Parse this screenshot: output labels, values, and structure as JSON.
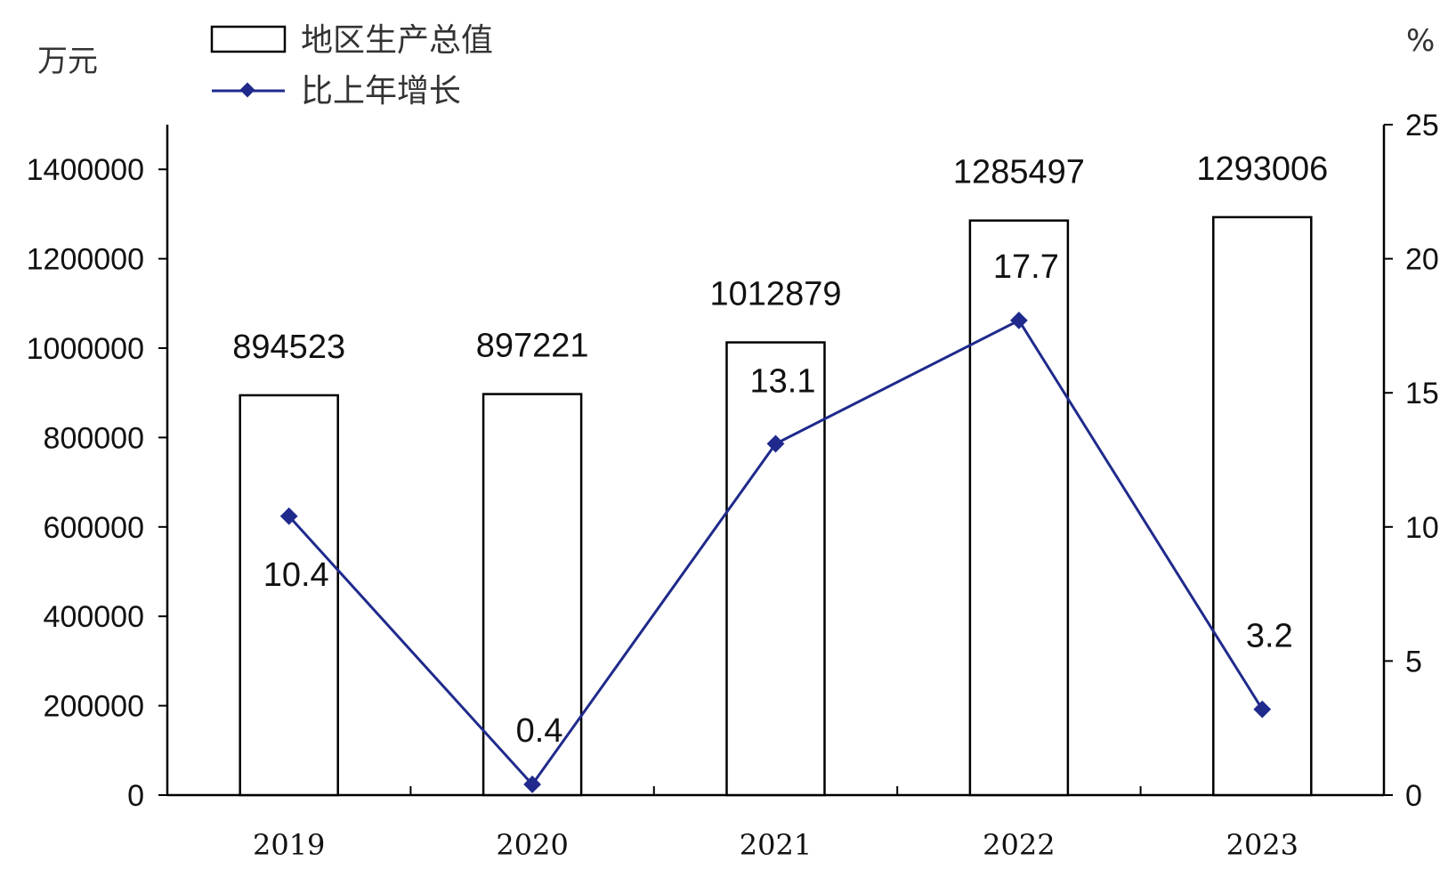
{
  "chart_data": {
    "type": "bar",
    "categories": [
      "2019",
      "2020",
      "2021",
      "2022",
      "2023"
    ],
    "series": [
      {
        "name": "地区生产总值",
        "type": "bar",
        "axis": "left",
        "values": [
          894523,
          897221,
          1012879,
          1285497,
          1293006
        ],
        "labels": [
          "894523",
          "897221",
          "1012879",
          "1285497",
          "1293006"
        ]
      },
      {
        "name": "比上年增长",
        "type": "line",
        "axis": "right",
        "values": [
          10.4,
          0.4,
          13.1,
          17.7,
          3.2
        ],
        "labels": [
          "10.4",
          "0.4",
          "13.1",
          "17.7",
          "3.2"
        ]
      }
    ],
    "y_left": {
      "unit": "万元",
      "ylim": [
        0,
        1500000
      ],
      "ticks": [
        0,
        200000,
        400000,
        600000,
        800000,
        1000000,
        1200000,
        1400000
      ],
      "tick_labels": [
        "0",
        "200000",
        "400000",
        "600000",
        "800000",
        "1000000",
        "1200000",
        "1400000"
      ]
    },
    "y_right": {
      "unit": "%",
      "ylim": [
        0,
        25
      ],
      "ticks": [
        0,
        5,
        10,
        15,
        20,
        25
      ],
      "tick_labels": [
        "0",
        "5",
        "10",
        "15",
        "20",
        "25"
      ]
    },
    "legend_placement": "top-left",
    "grid": false,
    "colors": {
      "bar_fill": "#ffffff",
      "bar_stroke": "#000000",
      "line": "#1f2a8c",
      "marker": "#1f2a8c"
    }
  }
}
